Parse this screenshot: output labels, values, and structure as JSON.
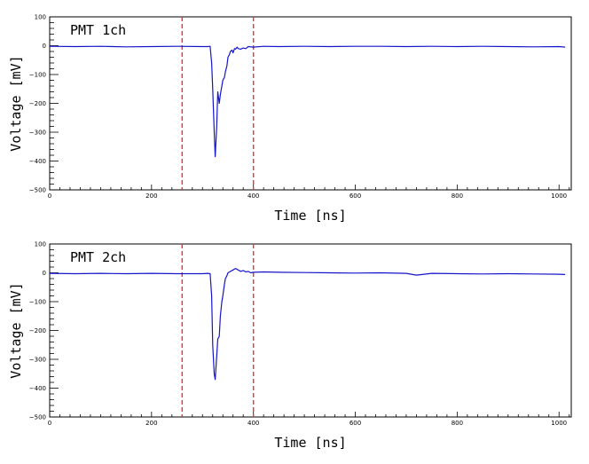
{
  "chart_data": [
    {
      "type": "line",
      "title": "PMT 1ch",
      "xlabel": "Time [ns]",
      "ylabel": "Voltage [mV]",
      "xlim": [
        0,
        1024
      ],
      "ylim": [
        -500,
        100
      ],
      "x_ticks": [
        "0",
        "200",
        "400",
        "600",
        "800",
        "1000"
      ],
      "y_ticks": [
        "100",
        "0",
        "-100",
        "-200",
        "-300",
        "-400",
        "-500"
      ],
      "markers": [
        260,
        400
      ],
      "marker_color": "#ee3333",
      "line_color": "#1515cc",
      "series": [
        {
          "x": [
            0,
            50,
            100,
            150,
            200,
            250,
            300,
            310,
            315,
            318,
            320,
            323,
            325,
            328,
            330,
            333,
            335,
            338,
            340,
            343,
            345,
            348,
            350,
            353,
            355,
            358,
            360,
            363,
            365,
            368,
            370,
            375,
            380,
            385,
            390,
            400,
            420,
            450,
            500,
            550,
            600,
            650,
            700,
            750,
            800,
            850,
            900,
            950,
            1000,
            1012
          ],
          "y": [
            -2,
            -3,
            -2,
            -4,
            -3,
            -2,
            -3,
            -3,
            -2,
            -60,
            -150,
            -300,
            -385,
            -280,
            -160,
            -200,
            -170,
            -140,
            -120,
            -110,
            -90,
            -70,
            -40,
            -30,
            -20,
            -15,
            -25,
            -10,
            -12,
            -5,
            -10,
            -12,
            -8,
            -10,
            -3,
            -5,
            -2,
            -3,
            -2,
            -3,
            -2,
            -2,
            -3,
            -2,
            -3,
            -2,
            -3,
            -4,
            -3,
            -5
          ]
        }
      ]
    },
    {
      "type": "line",
      "title": "PMT 2ch",
      "xlabel": "Time [ns]",
      "ylabel": "Voltage [mV]",
      "xlim": [
        0,
        1024
      ],
      "ylim": [
        -500,
        100
      ],
      "x_ticks": [
        "0",
        "200",
        "400",
        "600",
        "800",
        "1000"
      ],
      "y_ticks": [
        "100",
        "0",
        "-100",
        "-200",
        "-300",
        "-400",
        "-500"
      ],
      "markers": [
        260,
        400
      ],
      "marker_color": "#ee3333",
      "line_color": "#1515cc",
      "series": [
        {
          "x": [
            0,
            50,
            100,
            150,
            200,
            250,
            300,
            310,
            315,
            318,
            320,
            323,
            325,
            328,
            330,
            333,
            335,
            338,
            340,
            343,
            345,
            348,
            350,
            355,
            360,
            365,
            370,
            375,
            380,
            385,
            390,
            395,
            400,
            420,
            450,
            500,
            550,
            600,
            650,
            700,
            720,
            750,
            800,
            850,
            900,
            950,
            1000,
            1012
          ],
          "y": [
            -2,
            -3,
            -2,
            -3,
            -2,
            -3,
            -3,
            -2,
            -3,
            -80,
            -250,
            -350,
            -370,
            -290,
            -230,
            -220,
            -150,
            -100,
            -80,
            -40,
            -20,
            -10,
            0,
            5,
            10,
            15,
            10,
            5,
            8,
            3,
            5,
            0,
            2,
            3,
            2,
            1,
            0,
            -1,
            0,
            -2,
            -8,
            -2,
            -3,
            -4,
            -3,
            -4,
            -5,
            -6
          ]
        }
      ]
    }
  ]
}
